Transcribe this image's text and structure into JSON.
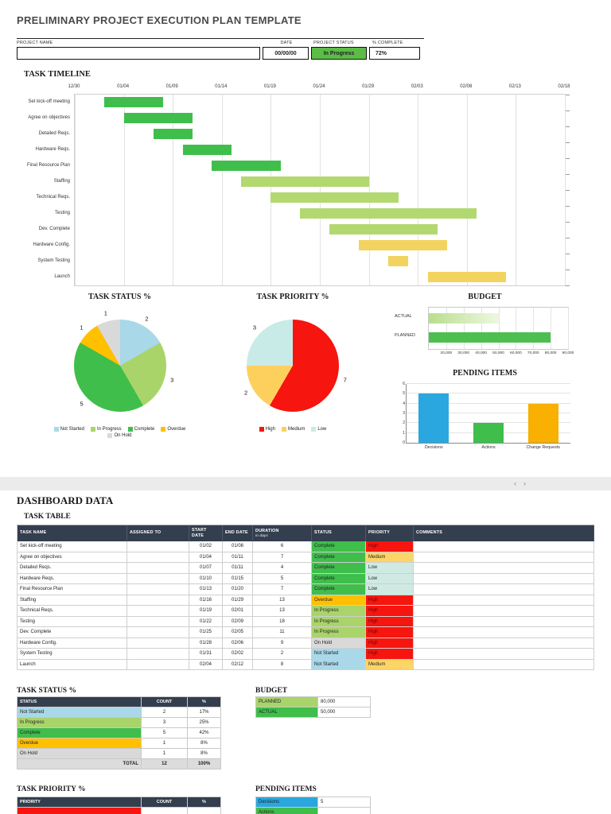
{
  "doc": {
    "title": "PRELIMINARY PROJECT EXECUTION PLAN TEMPLATE"
  },
  "summary": {
    "labels": {
      "project_name": "PROJECT NAME",
      "date": "DATE",
      "status": "PROJECT STATUS",
      "complete": "% COMPLETE"
    },
    "values": {
      "project_name": "",
      "date": "00/00/00",
      "status": "In Progress",
      "complete": "72%"
    }
  },
  "icons": {
    "scroll_left": "‹",
    "scroll_right": "›"
  },
  "colors": {
    "header_dark": "#333e4e",
    "status_box_green": "#5cbc47",
    "status_colors": {
      "Complete": "#3fbe4c",
      "In Progress": "#a9d46a",
      "Overdue": "#ffc000",
      "On Hold": "#d9d9d9",
      "Not Started": "#a9d8e8"
    },
    "priority_colors": {
      "High": "#f6150f",
      "Medium": "#fdd566",
      "Low": "#cfeae3"
    }
  },
  "chart_data": [
    {
      "type": "gantt",
      "title": "TASK TIMELINE",
      "x_tick_labels": [
        "12/30",
        "01/04",
        "01/09",
        "01/14",
        "01/19",
        "01/24",
        "01/29",
        "02/03",
        "02/08",
        "02/13",
        "02/18"
      ],
      "total_days": 50,
      "tasks": [
        {
          "name": "Set kick-off meeting",
          "start_date": "01/02",
          "end_date": "01/08",
          "start_day": 3,
          "end_day": 9,
          "color": "#3fbe4c"
        },
        {
          "name": "Agree on objectives",
          "start_date": "01/04",
          "end_date": "01/11",
          "start_day": 5,
          "end_day": 12,
          "color": "#3fbe4c"
        },
        {
          "name": "Detailed Reqs.",
          "start_date": "01/07",
          "end_date": "01/11",
          "start_day": 8,
          "end_day": 12,
          "color": "#3fbe4c"
        },
        {
          "name": "Hardware Reqs.",
          "start_date": "01/10",
          "end_date": "01/15",
          "start_day": 11,
          "end_day": 16,
          "color": "#3fbe4c"
        },
        {
          "name": "Final Resource Plan",
          "start_date": "01/13",
          "end_date": "01/20",
          "start_day": 14,
          "end_day": 21,
          "color": "#3fbe4c"
        },
        {
          "name": "Staffing",
          "start_date": "01/16",
          "end_date": "01/29",
          "start_day": 17,
          "end_day": 30,
          "color": "#b2d870"
        },
        {
          "name": "Technical Reqs.",
          "start_date": "01/19",
          "end_date": "02/01",
          "start_day": 20,
          "end_day": 33,
          "color": "#b2d870"
        },
        {
          "name": "Testing",
          "start_date": "01/22",
          "end_date": "02/09",
          "start_day": 23,
          "end_day": 41,
          "color": "#b2d870"
        },
        {
          "name": "Dev. Complete",
          "start_date": "01/25",
          "end_date": "02/05",
          "start_day": 26,
          "end_day": 37,
          "color": "#b2d870"
        },
        {
          "name": "Hardware Config.",
          "start_date": "01/28",
          "end_date": "02/06",
          "start_day": 29,
          "end_day": 38,
          "color": "#f2d35f"
        },
        {
          "name": "System Testing",
          "start_date": "01/31",
          "end_date": "02/02",
          "start_day": 32,
          "end_day": 34,
          "color": "#f2d35f"
        },
        {
          "name": "Launch",
          "start_date": "02/04",
          "end_date": "02/12",
          "start_day": 36,
          "end_day": 44,
          "color": "#f2d35f"
        }
      ]
    },
    {
      "type": "pie",
      "title": "TASK STATUS %",
      "labels": [
        "Not Started",
        "In Progress",
        "Complete",
        "Overdue",
        "On Hold"
      ],
      "values": [
        2,
        3,
        5,
        1,
        1
      ],
      "colors": [
        "#a9d8e8",
        "#a9d46a",
        "#3fbe4c",
        "#ffc000",
        "#d9d9d9"
      ],
      "legend_position": "bottom"
    },
    {
      "type": "pie",
      "title": "TASK PRIORITY %",
      "labels": [
        "High",
        "Medium",
        "Low"
      ],
      "values": [
        7,
        2,
        3
      ],
      "colors": [
        "#f6150f",
        "#fdd05e",
        "#c9ebe7"
      ],
      "legend_position": "bottom"
    },
    {
      "type": "bar-horizontal",
      "title": "BUDGET",
      "categories": [
        "ACTUAL",
        "PLANNED"
      ],
      "values": [
        50000,
        80000
      ],
      "xlim": [
        10000,
        90000
      ],
      "x_tick_values": [
        20000,
        30000,
        40000,
        50000,
        60000,
        70000,
        80000,
        90000
      ],
      "x_tick_labels": [
        "20,000",
        "30,000",
        "40,000",
        "50,000",
        "60,000",
        "70,000",
        "80,000",
        "90,000"
      ],
      "bar_colors": [
        [
          "#b9de8d",
          "#eef7e2"
        ],
        [
          "#4cbf50"
        ]
      ]
    },
    {
      "type": "bar",
      "title": "PENDING ITEMS",
      "categories": [
        "Decisions",
        "Actions",
        "Change Requests"
      ],
      "values": [
        5,
        2,
        4
      ],
      "ylim": [
        0,
        6
      ],
      "y_ticks": [
        0,
        1,
        2,
        3,
        4,
        5,
        6
      ],
      "colors": [
        "#2aa7de",
        "#3fbe4c",
        "#f9b001"
      ]
    }
  ],
  "dashboard": {
    "heading": "DASHBOARD DATA",
    "task_table": {
      "heading": "TASK TABLE",
      "columns": [
        {
          "label": "TASK NAME"
        },
        {
          "label": "ASSIGNED TO"
        },
        {
          "label": "START DATE"
        },
        {
          "label": "END DATE"
        },
        {
          "label": "DURATION",
          "sub": "in days"
        },
        {
          "label": "STATUS"
        },
        {
          "label": "PRIORITY"
        },
        {
          "label": "COMMENTS"
        }
      ],
      "rows": [
        {
          "task": "Set kick-off meeting",
          "assigned": "",
          "start": "01/02",
          "end": "01/08",
          "duration": "6",
          "status": "Complete",
          "priority": "High",
          "comments": ""
        },
        {
          "task": "Agree on objectives",
          "assigned": "",
          "start": "01/04",
          "end": "01/11",
          "duration": "7",
          "status": "Complete",
          "priority": "Medium",
          "comments": ""
        },
        {
          "task": "Detailed Reqs.",
          "assigned": "",
          "start": "01/07",
          "end": "01/11",
          "duration": "4",
          "status": "Complete",
          "priority": "Low",
          "comments": ""
        },
        {
          "task": "Hardware Reqs.",
          "assigned": "",
          "start": "01/10",
          "end": "01/15",
          "duration": "5",
          "status": "Complete",
          "priority": "Low",
          "comments": ""
        },
        {
          "task": "Final Resource Plan",
          "assigned": "",
          "start": "01/13",
          "end": "01/20",
          "duration": "7",
          "status": "Complete",
          "priority": "Low",
          "comments": ""
        },
        {
          "task": "Staffing",
          "assigned": "",
          "start": "01/16",
          "end": "01/29",
          "duration": "13",
          "status": "Overdue",
          "priority": "High",
          "comments": ""
        },
        {
          "task": "Technical Reqs.",
          "assigned": "",
          "start": "01/19",
          "end": "02/01",
          "duration": "13",
          "status": "In Progress",
          "priority": "High",
          "comments": ""
        },
        {
          "task": "Testing",
          "assigned": "",
          "start": "01/22",
          "end": "02/09",
          "duration": "18",
          "status": "In Progress",
          "priority": "High",
          "comments": ""
        },
        {
          "task": "Dev. Complete",
          "assigned": "",
          "start": "01/25",
          "end": "02/05",
          "duration": "11",
          "status": "In Progress",
          "priority": "High",
          "comments": ""
        },
        {
          "task": "Hardware Config.",
          "assigned": "",
          "start": "01/28",
          "end": "02/06",
          "duration": "9",
          "status": "On Hold",
          "priority": "High",
          "comments": ""
        },
        {
          "task": "System Testing",
          "assigned": "",
          "start": "01/31",
          "end": "02/02",
          "duration": "2",
          "status": "Not Started",
          "priority": "High",
          "comments": ""
        },
        {
          "task": "Launch",
          "assigned": "",
          "start": "02/04",
          "end": "02/12",
          "duration": "8",
          "status": "Not Started",
          "priority": "Medium",
          "comments": ""
        }
      ]
    },
    "status_table": {
      "heading": "TASK STATUS %",
      "columns": [
        "STATUS",
        "COUNT",
        "%"
      ],
      "rows": [
        {
          "label": "Not Started",
          "count": "2",
          "pct": "17%"
        },
        {
          "label": "In Progress",
          "count": "3",
          "pct": "25%"
        },
        {
          "label": "Complete",
          "count": "5",
          "pct": "42%"
        },
        {
          "label": "Overdue",
          "count": "1",
          "pct": "8%"
        },
        {
          "label": "On Hold",
          "count": "1",
          "pct": "8%"
        }
      ],
      "total": {
        "label": "TOTAL",
        "count": "12",
        "pct": "100%"
      }
    },
    "budget_table": {
      "heading": "BUDGET",
      "rows": [
        {
          "label": "PLANNED",
          "value": "80,000",
          "color": "#a9d46a"
        },
        {
          "label": "ACTUAL",
          "value": "50,000",
          "color": "#3fbe4c"
        }
      ]
    },
    "priority_table": {
      "heading": "TASK PRIORITY %",
      "columns": [
        "PRIORITY",
        "COUNT",
        "%"
      ],
      "rows": [
        {
          "label": "",
          "count": "",
          "pct": "",
          "color": "#f6150f"
        }
      ]
    },
    "pending_table": {
      "heading": "PENDING ITEMS",
      "rows": [
        {
          "label": "Decisions",
          "value": "5",
          "color": "#2aa7de"
        },
        {
          "label": "Actions",
          "value": "",
          "color": "#3fbe4c"
        }
      ]
    }
  }
}
